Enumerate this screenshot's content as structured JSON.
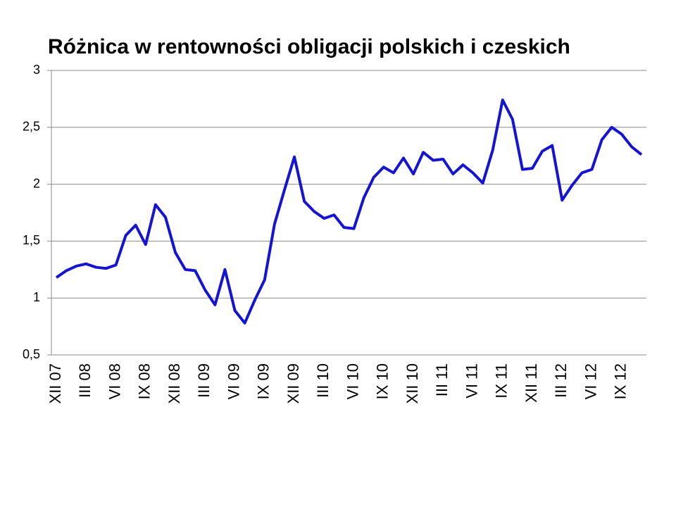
{
  "chart_data": {
    "type": "line",
    "title": "Różnica w rentowności obligacji polskich i czeskich",
    "categories": [
      "XII 07",
      null,
      null,
      "III 08",
      null,
      null,
      "VI 08",
      null,
      null,
      "IX 08",
      null,
      null,
      "XII 08",
      null,
      null,
      "III 09",
      null,
      null,
      "VI 09",
      null,
      null,
      "IX 09",
      null,
      null,
      "XII 09",
      null,
      null,
      "III 10",
      null,
      null,
      "VI 10",
      null,
      null,
      "IX 10",
      null,
      null,
      "XII 10",
      null,
      null,
      "III 11",
      null,
      null,
      "VI 11",
      null,
      null,
      "IX 11",
      null,
      null,
      "XII 11",
      null,
      null,
      "III 12",
      null,
      null,
      "VI 12",
      null,
      null,
      "IX 12",
      null,
      null
    ],
    "series": [
      {
        "color": "#1414d2",
        "values": [
          1.18,
          1.24,
          1.28,
          1.3,
          1.27,
          1.26,
          1.29,
          1.55,
          1.64,
          1.47,
          1.82,
          1.71,
          1.4,
          1.25,
          1.24,
          1.07,
          0.94,
          1.25,
          0.89,
          0.78,
          0.98,
          1.16,
          1.65,
          1.95,
          2.24,
          1.85,
          1.76,
          1.7,
          1.73,
          1.62,
          1.61,
          1.88,
          2.06,
          2.15,
          2.1,
          2.23,
          2.09,
          2.28,
          2.21,
          2.22,
          2.09,
          2.17,
          2.1,
          2.01,
          2.3,
          2.74,
          2.57,
          2.13,
          2.14,
          2.29,
          2.34,
          1.86,
          1.99,
          2.1,
          2.13,
          2.39,
          2.5,
          2.44,
          2.33,
          2.26
        ]
      }
    ],
    "ylim": [
      0.5,
      3
    ],
    "yticks": [
      {
        "value": 0.5,
        "label": "0,5"
      },
      1,
      {
        "value": 1.5,
        "label": "1,5"
      },
      2,
      {
        "value": 2.5,
        "label": "2,5"
      },
      3
    ],
    "grid": true
  }
}
